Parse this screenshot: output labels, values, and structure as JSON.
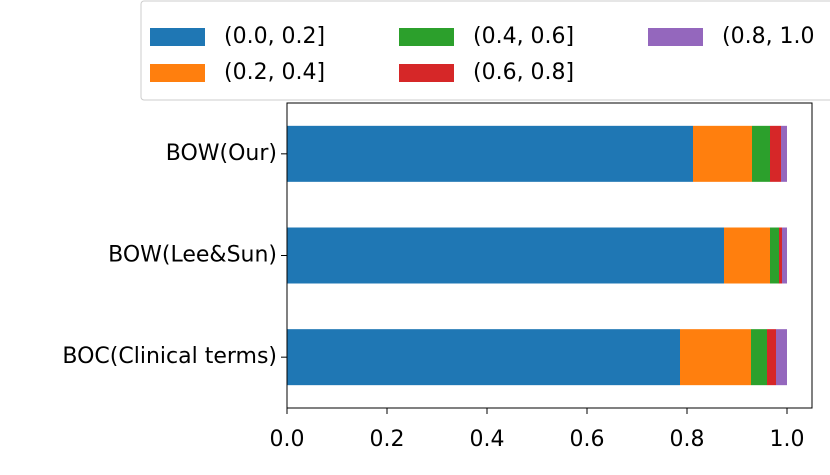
{
  "chart_data": {
    "type": "stacked_barh",
    "categories": [
      "BOW(Our)",
      "BOW(Lee&Sun)",
      "BOC(Clinical terms)"
    ],
    "series": [
      {
        "name": "(0.0, 0.2]",
        "color": "#1f77b4",
        "values": [
          0.812,
          0.874,
          0.786
        ]
      },
      {
        "name": "(0.2, 0.4]",
        "color": "#ff7f0e",
        "values": [
          0.118,
          0.092,
          0.142
        ]
      },
      {
        "name": "(0.4, 0.6]",
        "color": "#2ca02c",
        "values": [
          0.036,
          0.018,
          0.032
        ]
      },
      {
        "name": "(0.6, 0.8]",
        "color": "#d62728",
        "values": [
          0.022,
          0.006,
          0.018
        ]
      },
      {
        "name": "(0.8, 1.0",
        "color": "#9467bd",
        "values": [
          0.012,
          0.01,
          0.022
        ]
      }
    ],
    "xlim": [
      0,
      1.05
    ],
    "xticks": [
      {
        "value": 0,
        "label": "0.0"
      },
      0.2,
      0.4,
      0.6,
      0.8,
      {
        "value": 1,
        "label": "1.0"
      }
    ]
  }
}
